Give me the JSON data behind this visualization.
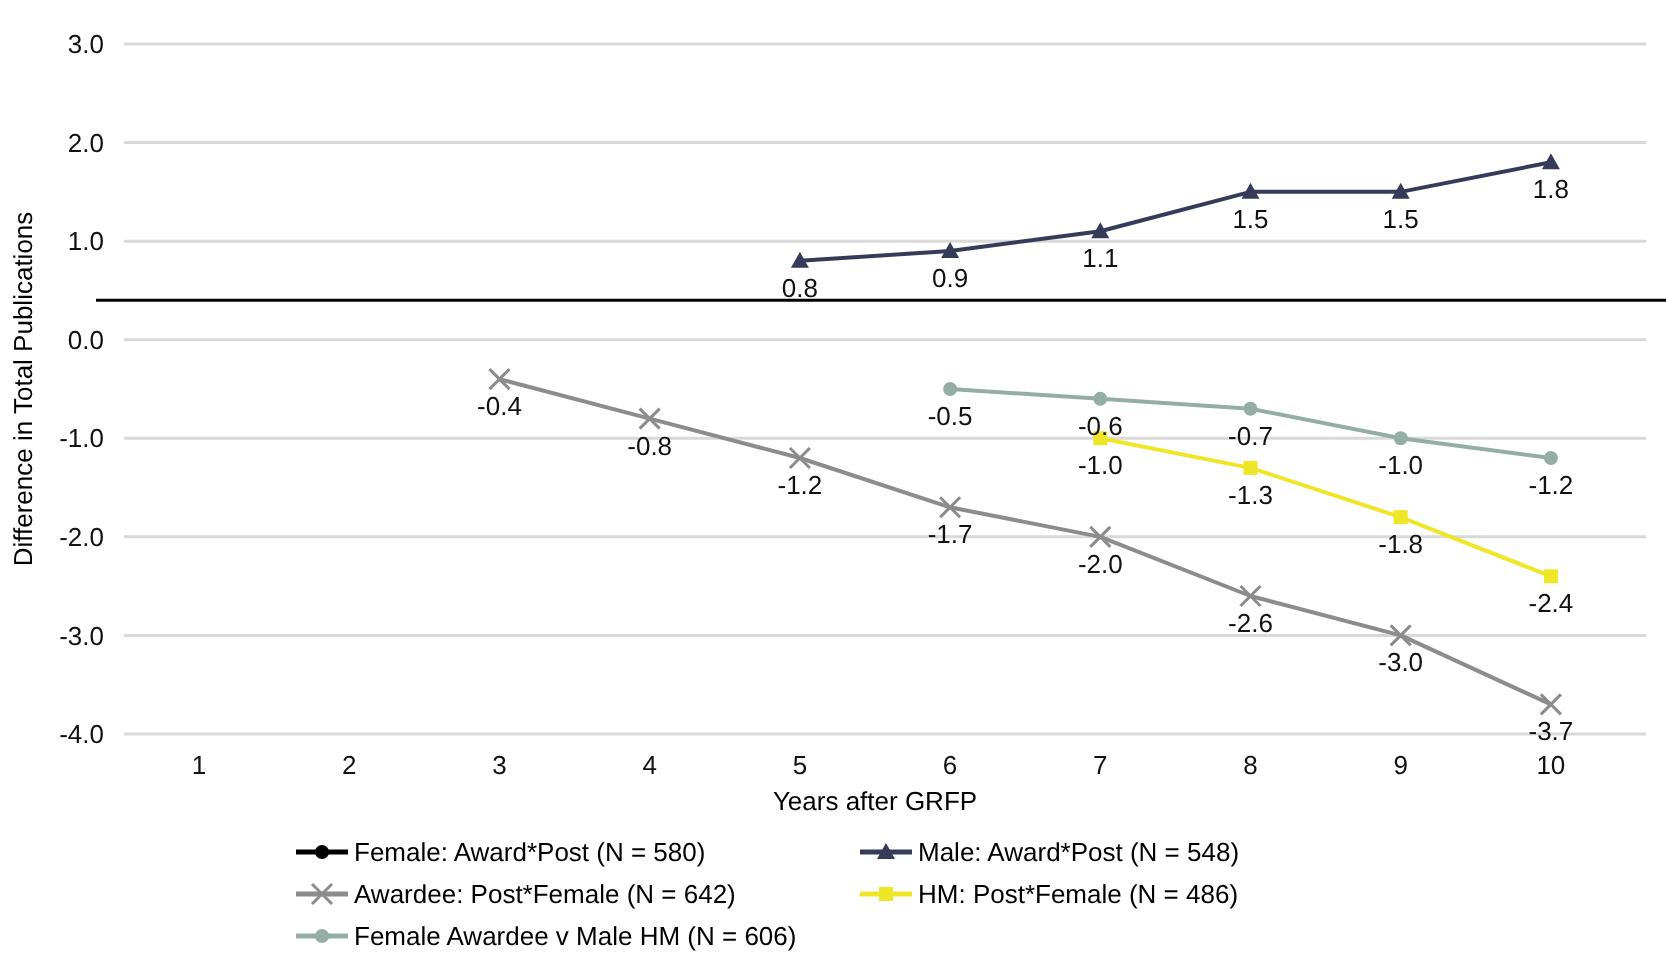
{
  "chart_data": {
    "type": "line",
    "xlabel": "Years after GRFP",
    "ylabel": "Difference in Total Publications",
    "categories": [
      "1",
      "2",
      "3",
      "4",
      "5",
      "6",
      "7",
      "8",
      "9",
      "10"
    ],
    "ylim": [
      -4,
      3
    ],
    "yticks": [
      {
        "value": -4,
        "label": "-4.0"
      },
      {
        "value": -3,
        "label": "-3.0"
      },
      {
        "value": -2,
        "label": "-2.0"
      },
      {
        "value": -1,
        "label": "-1.0"
      },
      {
        "value": 0,
        "label": "0.0"
      },
      {
        "value": 1,
        "label": "1.0"
      },
      {
        "value": 2,
        "label": "2.0"
      },
      {
        "value": 3,
        "label": "3.0"
      }
    ],
    "grid": "y",
    "legend": "bottom",
    "ref_lines": [
      {
        "axis": "y",
        "value": 0.4,
        "color": "#000000"
      }
    ],
    "series": [
      {
        "name": "Female: Award*Post (N = 580)",
        "color": "#000000",
        "marker": "circle",
        "values": [
          null,
          null,
          null,
          null,
          null,
          null,
          null,
          null,
          null,
          null
        ]
      },
      {
        "name": "Male: Award*Post (N = 548)",
        "color": "#363b5a",
        "marker": "triangle",
        "values": [
          null,
          null,
          null,
          null,
          0.8,
          0.9,
          1.1,
          1.5,
          1.5,
          1.8
        ],
        "value_labels": [
          null,
          null,
          null,
          null,
          "0.8",
          "0.9",
          "1.1",
          "1.5",
          "1.5",
          "1.8"
        ]
      },
      {
        "name": "Awardee: Post*Female (N = 642)",
        "color": "#8c8c8c",
        "marker": "cross",
        "values": [
          null,
          null,
          -0.4,
          -0.8,
          -1.2,
          -1.7,
          -2.0,
          -2.6,
          -3.0,
          -3.7
        ],
        "value_labels": [
          null,
          null,
          "-0.4",
          "-0.8",
          "-1.2",
          "-1.7",
          "-2.0",
          "-2.6",
          "-3.0",
          "-3.7"
        ]
      },
      {
        "name": "HM: Post*Female (N = 486)",
        "color": "#f0e628",
        "marker": "square",
        "values": [
          null,
          null,
          null,
          null,
          null,
          null,
          -1.0,
          -1.3,
          -1.8,
          -2.4
        ],
        "value_labels": [
          null,
          null,
          null,
          null,
          null,
          null,
          "-1.0",
          "-1.3",
          "-1.8",
          "-2.4"
        ]
      },
      {
        "name": "Female Awardee v Male HM (N = 606)",
        "color": "#94aea6",
        "marker": "circle",
        "values": [
          null,
          null,
          null,
          null,
          null,
          -0.5,
          -0.6,
          -0.7,
          -1.0,
          -1.2
        ],
        "value_labels": [
          null,
          null,
          null,
          null,
          null,
          "-0.5",
          "-0.6",
          "-0.7",
          "-1.0",
          "-1.2"
        ]
      }
    ]
  }
}
